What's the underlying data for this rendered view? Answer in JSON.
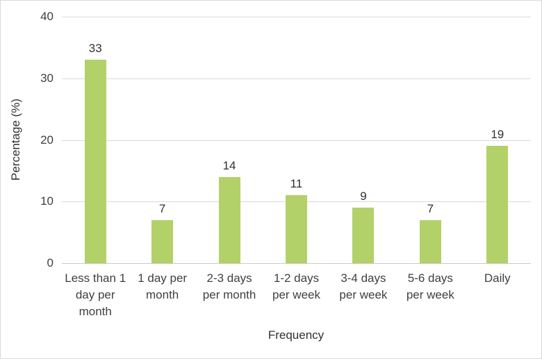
{
  "chart_data": {
    "type": "bar",
    "title": "",
    "categories": [
      "Less than 1\nday per\nmonth",
      "1 day per\nmonth",
      "2-3 days\nper month",
      "1-2 days\nper week",
      "3-4 days\nper week",
      "5-6 days\nper week",
      "Daily"
    ],
    "values": [
      33,
      7,
      14,
      11,
      9,
      7,
      19
    ],
    "data_labels": [
      "33",
      "7",
      "14",
      "11",
      "9",
      "7",
      "19"
    ],
    "xlabel": "Frequency",
    "ylabel": "Percentage (%)",
    "ylim": [
      0,
      40
    ],
    "yticks": [
      0,
      10,
      20,
      30,
      40
    ],
    "grid": "horizontal",
    "legend_position": "none",
    "colors": {
      "bar_fill": "#b2d169",
      "gridline": "#d9d9d9",
      "axis_line": "#c9c9c9",
      "label_text": "#303030",
      "frame_border": "#d9d9d9",
      "background": "#ffffff"
    }
  }
}
